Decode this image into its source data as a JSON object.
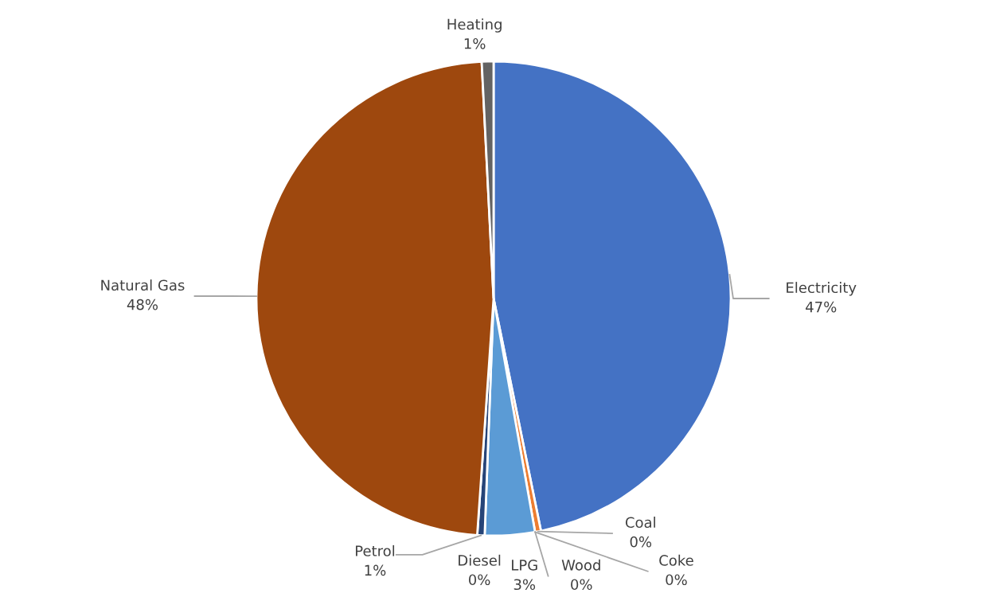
{
  "chart_data": {
    "type": "pie",
    "categories": [
      "Electricity",
      "Coal",
      "Coke",
      "Wood",
      "LPG",
      "Diesel",
      "Petrol",
      "Natural Gas",
      "Heating"
    ],
    "values": [
      46.8,
      0.4,
      0,
      0,
      3.4,
      0,
      0.5,
      48.1,
      0.8
    ],
    "colors": [
      "#4472c4",
      "#ed7d31",
      "#a5a5a5",
      "#ffc000",
      "#5b9bd5",
      "#70ad47",
      "#264478",
      "#9e480e",
      "#636363"
    ],
    "value_labels": [
      "47%",
      "0%",
      "0%",
      "0%",
      "3%",
      "0%",
      "1%",
      "48%",
      "1%"
    ]
  }
}
